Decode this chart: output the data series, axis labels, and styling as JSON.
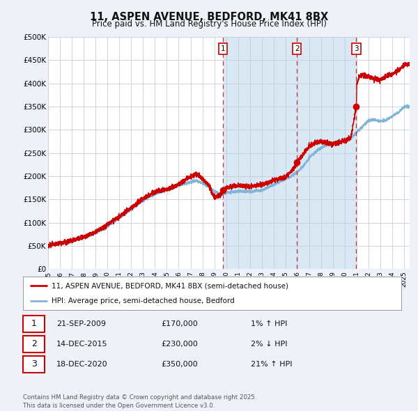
{
  "title": "11, ASPEN AVENUE, BEDFORD, MK41 8BX",
  "subtitle": "Price paid vs. HM Land Registry's House Price Index (HPI)",
  "background_color": "#eef2f8",
  "plot_bg_color": "#ffffff",
  "shaded_region_color": "#d8e8f5",
  "grid_color": "#c5cdd8",
  "red_line_color": "#cc0000",
  "blue_line_color": "#82b4d8",
  "sale_marker_color": "#cc0000",
  "dashed_line_color": "#cc3333",
  "year_start": 1995,
  "year_end": 2025,
  "ymin": 0,
  "ymax": 500000,
  "yticks": [
    0,
    50000,
    100000,
    150000,
    200000,
    250000,
    300000,
    350000,
    400000,
    450000,
    500000
  ],
  "ytick_labels": [
    "£0",
    "£50K",
    "£100K",
    "£150K",
    "£200K",
    "£250K",
    "£300K",
    "£350K",
    "£400K",
    "£450K",
    "£500K"
  ],
  "sale_dates": [
    2009.72,
    2015.96,
    2020.96
  ],
  "sale_prices": [
    170000,
    230000,
    350000
  ],
  "sale_labels": [
    "1",
    "2",
    "3"
  ],
  "sale_label_dates": [
    "21-SEP-2009",
    "14-DEC-2015",
    "18-DEC-2020"
  ],
  "sale_label_prices": [
    "£170,000",
    "£230,000",
    "£350,000"
  ],
  "sale_label_hpi": [
    "1% ↑ HPI",
    "2% ↓ HPI",
    "21% ↑ HPI"
  ],
  "legend_red_label": "11, ASPEN AVENUE, BEDFORD, MK41 8BX (semi-detached house)",
  "legend_blue_label": "HPI: Average price, semi-detached house, Bedford",
  "footer_text": "Contains HM Land Registry data © Crown copyright and database right 2025.\nThis data is licensed under the Open Government Licence v3.0.",
  "xtick_years": [
    1995,
    1996,
    1997,
    1998,
    1999,
    2000,
    2001,
    2002,
    2003,
    2004,
    2005,
    2006,
    2007,
    2008,
    2009,
    2010,
    2011,
    2012,
    2013,
    2014,
    2015,
    2016,
    2017,
    2018,
    2019,
    2020,
    2021,
    2022,
    2023,
    2024,
    2025
  ]
}
